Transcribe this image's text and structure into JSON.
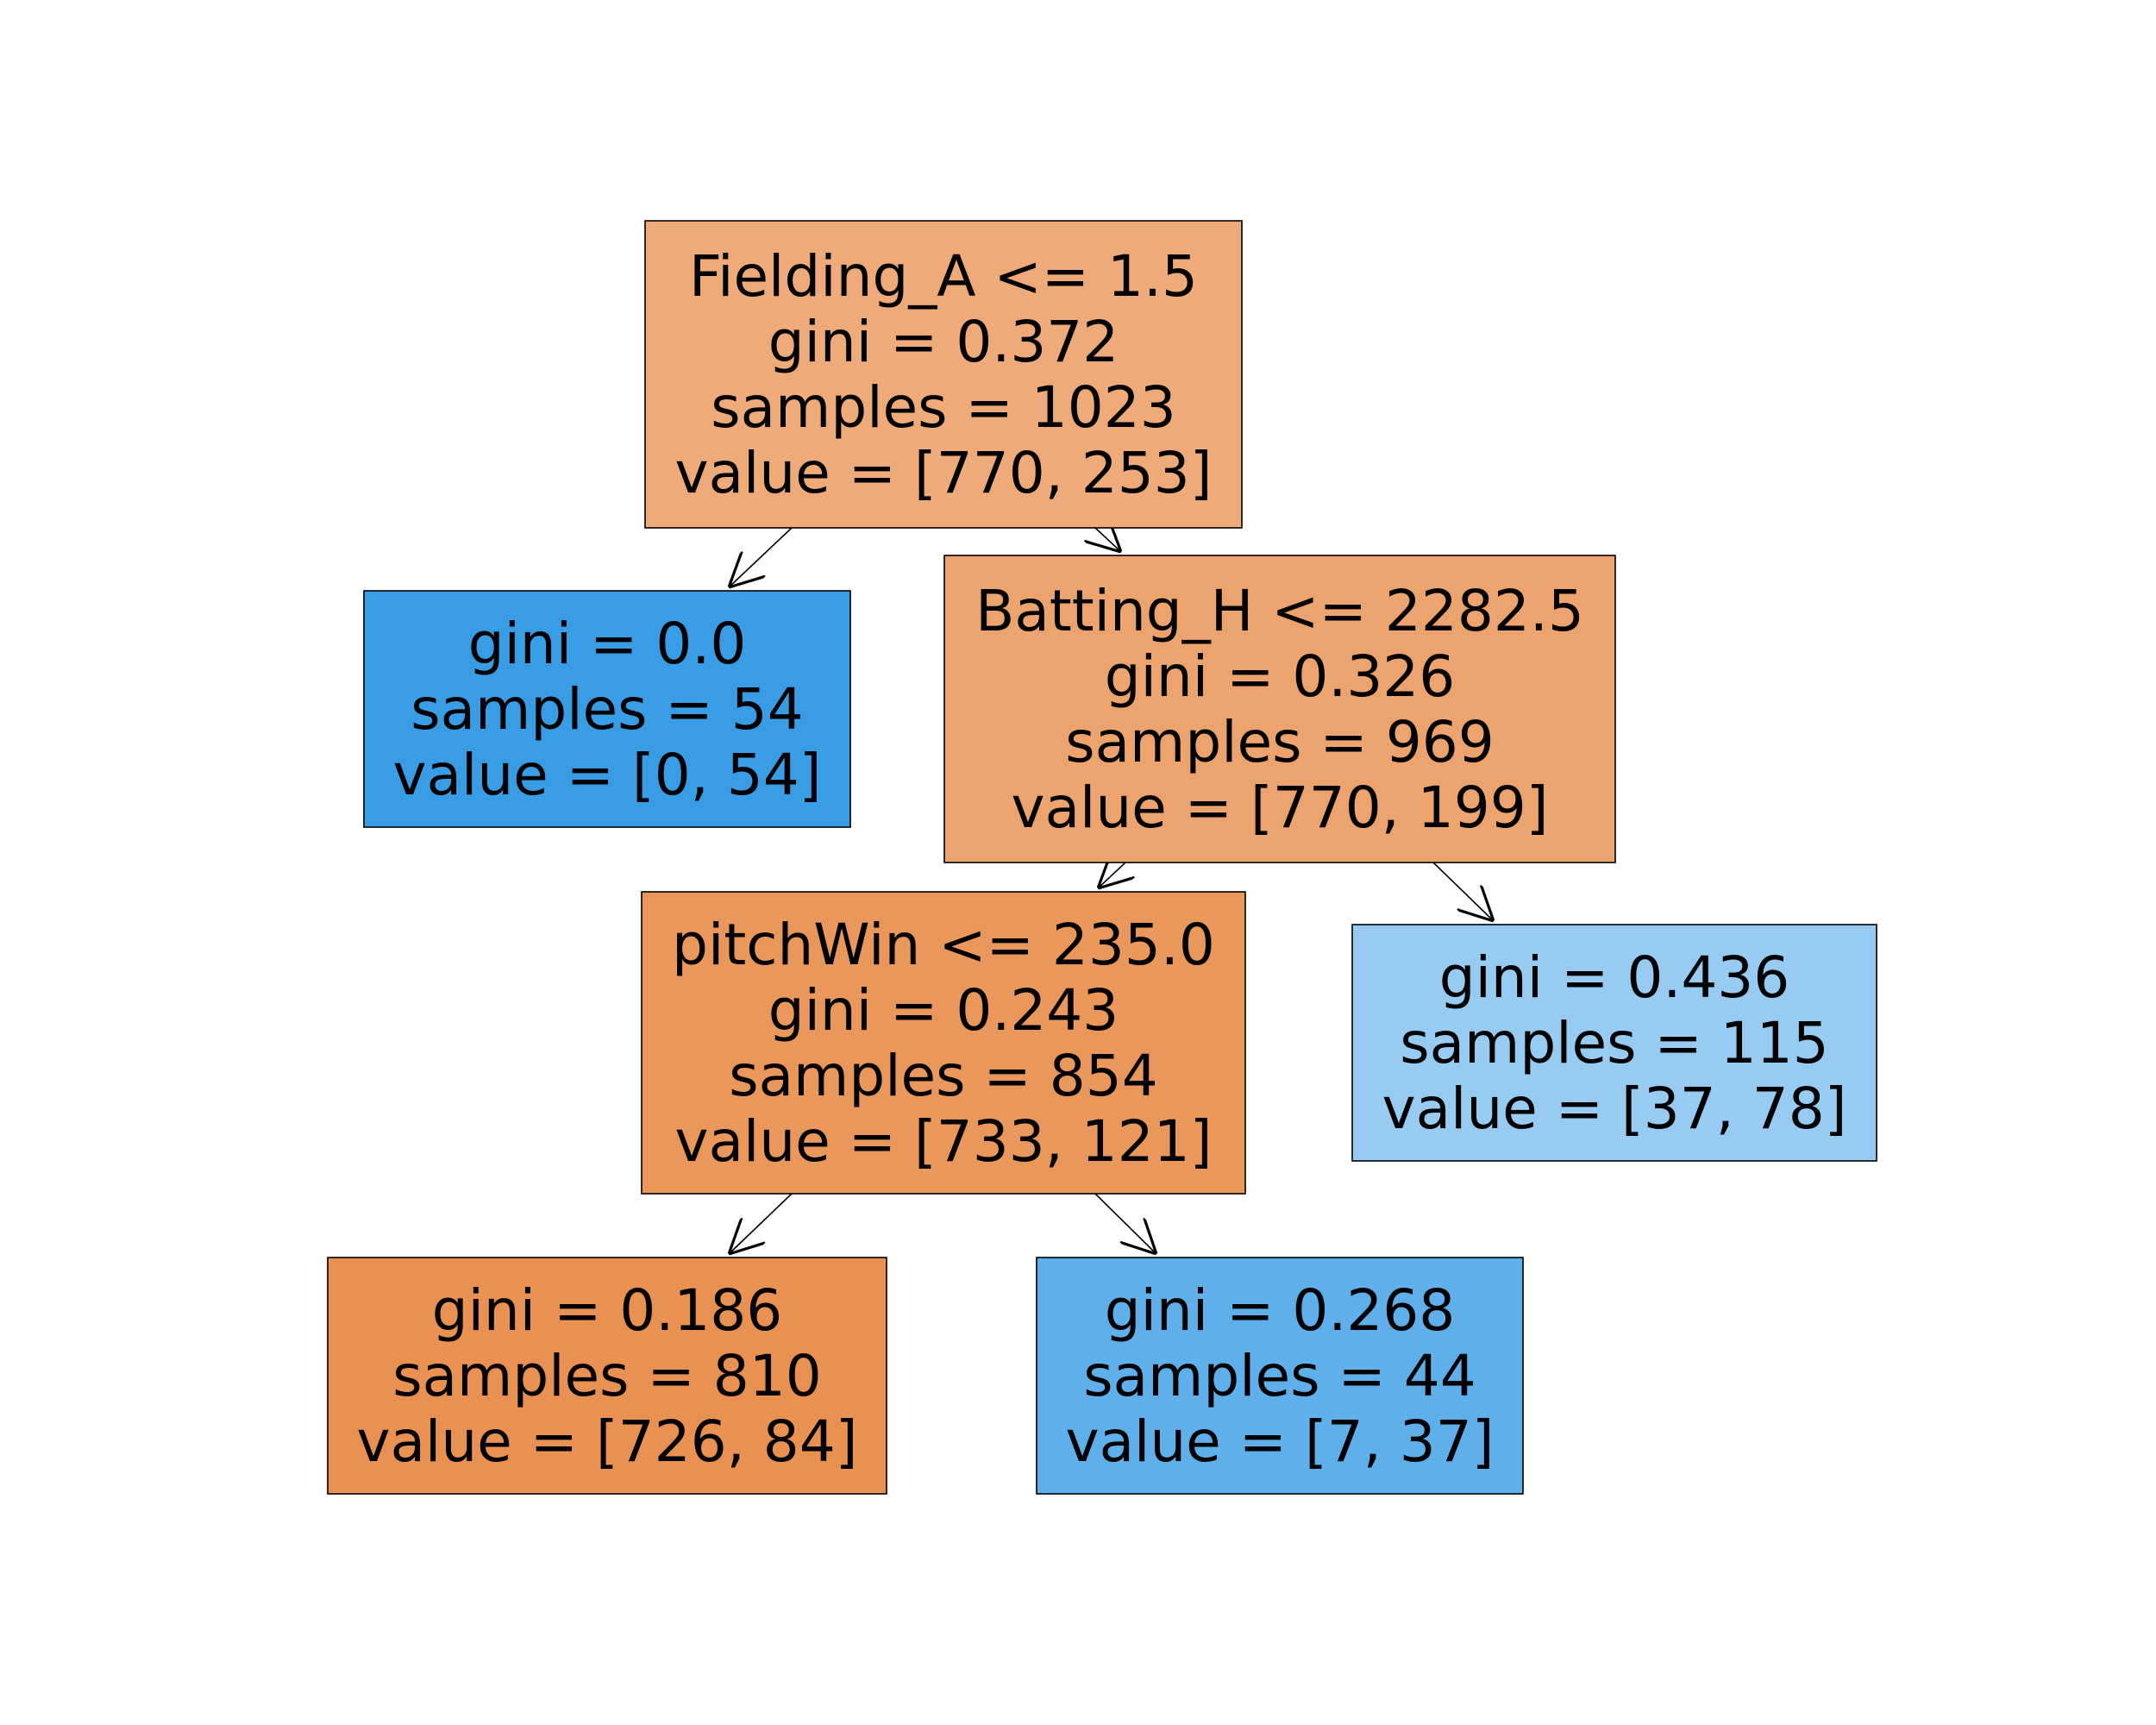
{
  "tree": {
    "nodes": [
      {
        "id": "root",
        "lines": [
          "Fielding_A <= 1.5",
          "gini = 0.372",
          "samples = 1023",
          "value = [770, 253]"
        ],
        "fill": "#efaa7a"
      },
      {
        "id": "left-leaf",
        "lines": [
          "gini = 0.0",
          "samples = 54",
          "value = [0, 54]"
        ],
        "fill": "#399de5"
      },
      {
        "id": "batting",
        "lines": [
          "Batting_H <= 2282.5",
          "gini = 0.326",
          "samples = 969",
          "value = [770, 199]"
        ],
        "fill": "#eca36e"
      },
      {
        "id": "pitchwin",
        "lines": [
          "pitchWin <= 235.0",
          "gini = 0.243",
          "samples = 854",
          "value = [733, 121]"
        ],
        "fill": "#e9975b"
      },
      {
        "id": "right-leaf",
        "lines": [
          "gini = 0.436",
          "samples = 115",
          "value = [37, 78]"
        ],
        "fill": "#97cbf1"
      },
      {
        "id": "leaf-810",
        "lines": [
          "gini = 0.186",
          "samples = 810",
          "value = [726, 84]"
        ],
        "fill": "#e89152"
      },
      {
        "id": "leaf-44",
        "lines": [
          "gini = 0.268",
          "samples = 44",
          "value = [7, 37]"
        ],
        "fill": "#5eafea"
      }
    ],
    "edges": [
      [
        "root",
        "left-leaf"
      ],
      [
        "root",
        "batting"
      ],
      [
        "batting",
        "pitchwin"
      ],
      [
        "batting",
        "right-leaf"
      ],
      [
        "pitchwin",
        "leaf-810"
      ],
      [
        "pitchwin",
        "leaf-44"
      ]
    ]
  }
}
